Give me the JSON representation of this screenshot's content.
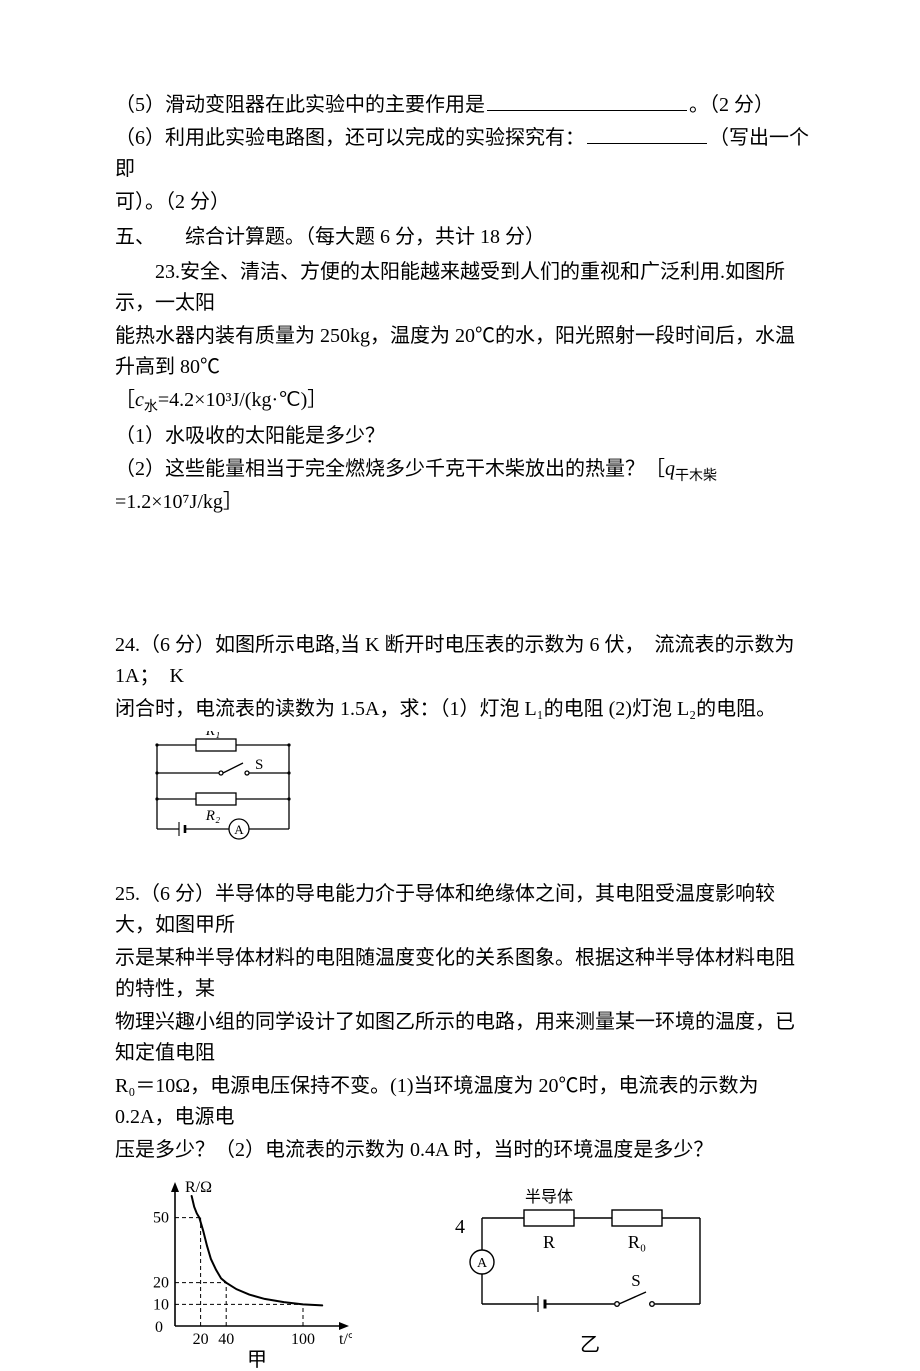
{
  "q5": "（5）滑动变阻器在此实验中的主要作用是",
  "q5_tail": "。（2 分）",
  "q6_a": "（6）利用此实验电路图，还可以完成的实验探究有：",
  "q6_b": "（写出一个即",
  "q6_c": "可）。（2 分）",
  "sec5": "五、　　综合计算题。（每大题 6 分，共计 18 分）",
  "p23_a": "23.安全、清洁、方便的太阳能越来越受到人们的重视和广泛利用.如图所示，一太阳",
  "p23_b": "能热水器内装有质量为 250kg，温度为 20℃的水，阳光照射一段时间后，水温升高到 80℃",
  "p23_c_open": "［",
  "p23_c_var": "c",
  "p23_c_sub": "水",
  "p23_c_rest": "=4.2×10³J/(kg·℃)］",
  "p23_q1": "（1）水吸收的太阳能是多少？",
  "p23_q2_a": "（2）这些能量相当于完全燃烧多少千克干木柴放出的热量？［",
  "p23_q2_var": "q",
  "p23_q2_sub": "干木柴",
  "p23_q2_rest": "=1.2×10⁷J/kg］",
  "p24_a": "24.（6 分）如图所示电路,当 K 断开时电压表的示数为 6 伏，　流流表的示数为 1A；　K",
  "p24_b": "闭合时，电流表的读数为 1.5A，求：（1）灯泡 L₁的电阻 (2)灯泡 L₂的电阻。",
  "p25_a": "25.（6 分）半导体的导电能力介于导体和绝缘体之间，其电阻受温度影响较大，如图甲所",
  "p25_b": "示是某种半导体材料的电阻随温度变化的关系图象。根据这种半导体材料电阻的特性，某",
  "p25_c": "物理兴趣小组的同学设计了如图乙所示的电路，用来测量某一环境的温度，已知定值电阻",
  "p25_d": "R₀＝10Ω，电源电压保持不变。(1)当环境温度为 20℃时，电流表的示数为 0.2A，电源电",
  "p25_e": "压是多少？（2）电流表的示数为 0.4A 时，当时的环境温度是多少？",
  "circuit24": {
    "components": {
      "R1": "R₁",
      "R2": "R₂",
      "S": "S",
      "A": "A"
    },
    "stroke": "#000000",
    "fill": "#ffffff",
    "stroke_width": 1.3
  },
  "graph25": {
    "type": "line",
    "y_label": "R/Ω",
    "x_label": "t/°C",
    "y_ticks": [
      0,
      10,
      20,
      50
    ],
    "x_ticks": [
      20,
      40,
      100
    ],
    "xlim": [
      0,
      125
    ],
    "ylim": [
      0,
      60
    ],
    "curve_points": [
      [
        13,
        60
      ],
      [
        15,
        55
      ],
      [
        17,
        52
      ],
      [
        19,
        50
      ],
      [
        22,
        44
      ],
      [
        25,
        37
      ],
      [
        28,
        31
      ],
      [
        32,
        26
      ],
      [
        36,
        22
      ],
      [
        40,
        20
      ],
      [
        48,
        17
      ],
      [
        58,
        14.5
      ],
      [
        70,
        12.5
      ],
      [
        85,
        11
      ],
      [
        100,
        10
      ],
      [
        115,
        9.5
      ]
    ],
    "dash_points": {
      "x20_to_y50": true,
      "x40_to_y20": true,
      "x100_to_y10": true
    },
    "stroke": "#000000",
    "bg": "#ffffff",
    "axis_width": 1.6,
    "curve_width": 2,
    "dash_width": 1,
    "label_fontsize": 16,
    "tick_fontsize": 16,
    "caption": "甲"
  },
  "circuit25": {
    "components": {
      "semi": "半导体",
      "R": "R",
      "R0": "R₀",
      "A": "A",
      "S": "S"
    },
    "stroke": "#000000",
    "fill": "#ffffff",
    "stroke_width": 1.4,
    "caption": "乙"
  },
  "page_number": "4"
}
